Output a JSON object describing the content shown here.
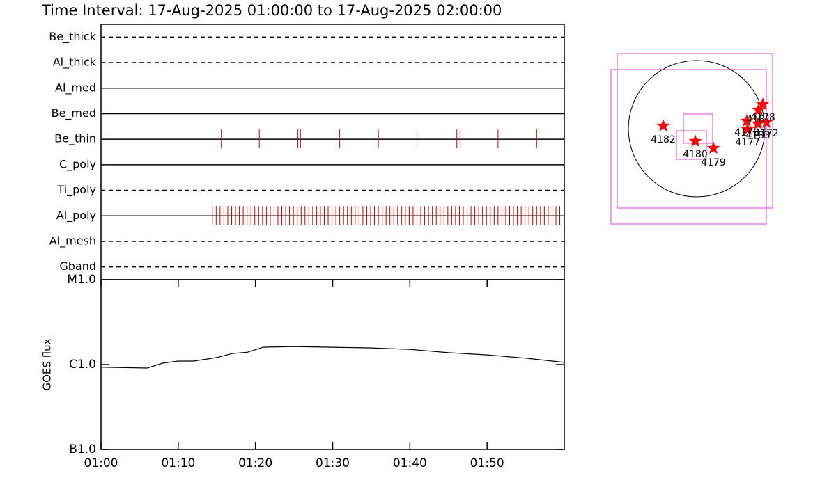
{
  "chart_data": [
    {
      "type": "timeline",
      "title": "Time Interval: 17-Aug-2025 01:00:00 to 17-Aug-2025 02:00:00",
      "xlim": [
        "01:00",
        "02:00"
      ],
      "exposure_color": "#cc0000",
      "rows": [
        {
          "name": "Be_thick",
          "line": "dashed",
          "times": []
        },
        {
          "name": "Al_thick",
          "line": "dashed",
          "times": []
        },
        {
          "name": "Al_med",
          "line": "solid",
          "times": []
        },
        {
          "name": "Be_med",
          "line": "solid",
          "times": []
        },
        {
          "name": "Be_thin",
          "line": "solid",
          "times": [
            "01:15:35",
            "01:20:30",
            "01:25:30",
            "01:25:50",
            "01:30:55",
            "01:35:55",
            "01:40:55",
            "01:46:05",
            "01:46:30",
            "01:51:25",
            "01:56:25"
          ]
        },
        {
          "name": "C_poly",
          "line": "solid",
          "times": []
        },
        {
          "name": "Ti_poly",
          "line": "dashed",
          "times": []
        },
        {
          "name": "Al_poly",
          "line": "solid",
          "times": [
            "01:14:25",
            "01:14:55",
            "01:15:25",
            "01:15:55",
            "01:16:25",
            "01:16:55",
            "01:17:25",
            "01:17:55",
            "01:18:25",
            "01:18:55",
            "01:19:25",
            "01:19:55",
            "01:20:25",
            "01:20:55",
            "01:21:25",
            "01:21:55",
            "01:22:25",
            "01:22:55",
            "01:23:25",
            "01:23:55",
            "01:24:25",
            "01:24:55",
            "01:25:25",
            "01:25:55",
            "01:26:25",
            "01:26:55",
            "01:27:25",
            "01:27:55",
            "01:28:25",
            "01:28:55",
            "01:29:25",
            "01:29:55",
            "01:30:25",
            "01:30:55",
            "01:31:25",
            "01:31:55",
            "01:32:25",
            "01:32:55",
            "01:33:25",
            "01:33:55",
            "01:34:25",
            "01:34:55",
            "01:35:25",
            "01:35:55",
            "01:36:25",
            "01:36:55",
            "01:37:25",
            "01:37:55",
            "01:38:25",
            "01:38:55",
            "01:39:25",
            "01:39:55",
            "01:40:25",
            "01:40:55",
            "01:41:25",
            "01:41:55",
            "01:42:25",
            "01:42:55",
            "01:43:25",
            "01:43:55",
            "01:44:25",
            "01:44:55",
            "01:45:25",
            "01:45:55",
            "01:46:25",
            "01:46:55",
            "01:47:25",
            "01:47:55",
            "01:48:25",
            "01:48:55",
            "01:49:25",
            "01:49:55",
            "01:50:25",
            "01:50:55",
            "01:51:25",
            "01:51:55",
            "01:52:25",
            "01:52:55",
            "01:53:25",
            "01:53:55",
            "01:54:25",
            "01:54:55",
            "01:55:25",
            "01:55:55",
            "01:56:25",
            "01:56:55",
            "01:57:25",
            "01:57:55",
            "01:58:25",
            "01:58:55",
            "01:59:25"
          ]
        },
        {
          "name": "Al_mesh",
          "line": "dashed",
          "times": []
        },
        {
          "name": "Gband",
          "line": "dashed",
          "times": []
        }
      ]
    },
    {
      "type": "line",
      "y_label": "GOES flux",
      "log_scale": true,
      "color": "#000000",
      "x": [
        "01:00",
        "01:06",
        "01:08",
        "01:10",
        "01:12",
        "01:15",
        "01:17",
        "01:19",
        "01:21",
        "01:25",
        "01:30",
        "01:35",
        "01:40",
        "01:45",
        "01:50",
        "01:55",
        "02:00"
      ],
      "values": [
        9.3e-07,
        9.1e-07,
        1.04e-06,
        1.1e-06,
        1.1e-06,
        1.21e-06,
        1.35e-06,
        1.4e-06,
        1.6e-06,
        1.63e-06,
        1.6e-06,
        1.57e-06,
        1.51e-06,
        1.38e-06,
        1.3e-06,
        1.19e-06,
        1.06e-06
      ],
      "xlim": [
        "01:00",
        "02:00"
      ],
      "xticks": [
        "01:00",
        "01:10",
        "01:20",
        "01:30",
        "01:40",
        "01:50"
      ],
      "ylim": [
        1e-07,
        1e-05
      ],
      "yticks": [
        {
          "value": 1e-07,
          "label": "B1.0"
        },
        {
          "value": 1e-06,
          "label": "C1.0"
        },
        {
          "value": 1e-05,
          "label": "M1.0"
        }
      ]
    }
  ],
  "map": {
    "regions": [
      {
        "label": "4182"
      },
      {
        "label": "4180"
      },
      {
        "label": "4179"
      },
      {
        "label": "4177"
      },
      {
        "label": "4176"
      },
      {
        "label": "4183"
      },
      {
        "label": "4172"
      },
      {
        "label": "4178"
      },
      {
        "label": "4181"
      }
    ]
  }
}
